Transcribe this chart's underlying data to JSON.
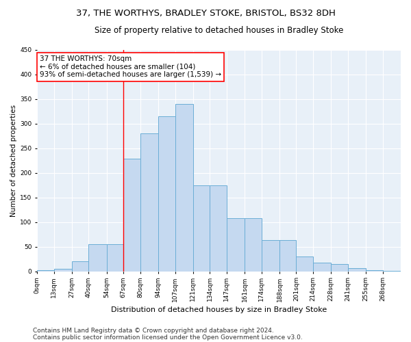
{
  "title1": "37, THE WORTHYS, BRADLEY STOKE, BRISTOL, BS32 8DH",
  "title2": "Size of property relative to detached houses in Bradley Stoke",
  "xlabel": "Distribution of detached houses by size in Bradley Stoke",
  "ylabel": "Number of detached properties",
  "bar_color": "#c5d9f0",
  "bar_edge_color": "#6baed6",
  "vline_x": 67,
  "vline_color": "red",
  "annotation_text": "37 THE WORTHYS: 70sqm\n← 6% of detached houses are smaller (104)\n93% of semi-detached houses are larger (1,539) →",
  "annotation_box_color": "white",
  "annotation_box_edge": "red",
  "footer1": "Contains HM Land Registry data © Crown copyright and database right 2024.",
  "footer2": "Contains public sector information licensed under the Open Government Licence v3.0.",
  "bin_edges": [
    0,
    13,
    27,
    40,
    54,
    67,
    80,
    94,
    107,
    121,
    134,
    147,
    161,
    174,
    188,
    201,
    214,
    228,
    241,
    255,
    268,
    282
  ],
  "bin_labels": [
    "0sqm",
    "13sqm",
    "27sqm",
    "40sqm",
    "54sqm",
    "67sqm",
    "80sqm",
    "94sqm",
    "107sqm",
    "121sqm",
    "134sqm",
    "147sqm",
    "161sqm",
    "174sqm",
    "188sqm",
    "201sqm",
    "214sqm",
    "228sqm",
    "241sqm",
    "255sqm",
    "268sqm"
  ],
  "counts": [
    2,
    5,
    20,
    55,
    55,
    228,
    280,
    315,
    340,
    175,
    175,
    108,
    108,
    63,
    63,
    30,
    17,
    15,
    6,
    2,
    1
  ],
  "ylim": [
    0,
    450
  ],
  "yticks": [
    0,
    50,
    100,
    150,
    200,
    250,
    300,
    350,
    400,
    450
  ],
  "background_color": "#e8f0f8",
  "grid_color": "white",
  "title1_fontsize": 9.5,
  "title2_fontsize": 8.5,
  "xlabel_fontsize": 8,
  "ylabel_fontsize": 7.5,
  "tick_fontsize": 6.5,
  "footer_fontsize": 6.5,
  "annot_fontsize": 7.5
}
